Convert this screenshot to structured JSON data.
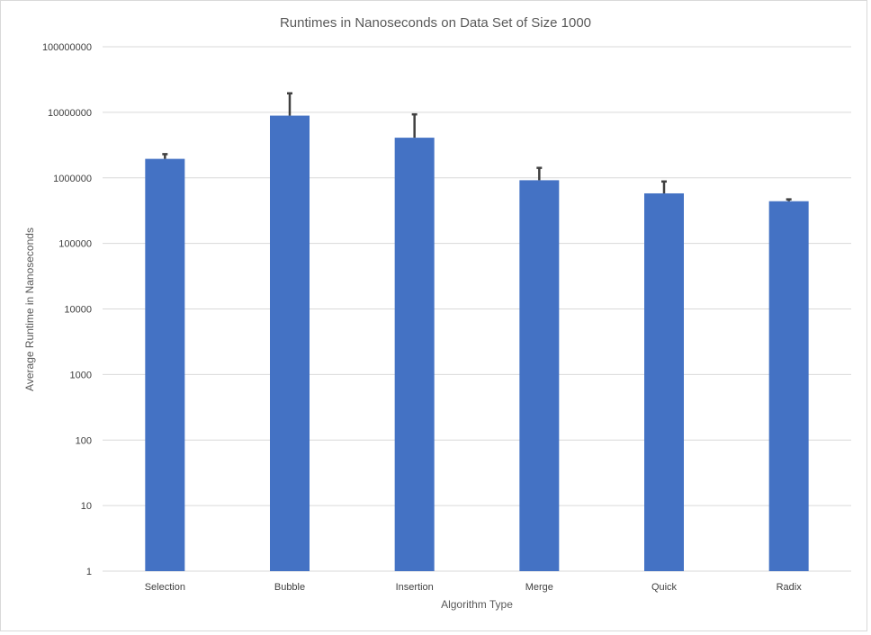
{
  "chart_data": {
    "type": "bar",
    "title": "Runtimes in Nanoseconds on Data Set of Size 1000",
    "xlabel": "Algorithm Type",
    "ylabel": "Average Runtime in Nanoseconds",
    "yscale": "log",
    "ylim": [
      1,
      100000000
    ],
    "yticks": [
      "1",
      "10",
      "100",
      "1000",
      "10000",
      "100000",
      "1000000",
      "10000000",
      "100000000"
    ],
    "grid": true,
    "categories": [
      "Selection",
      "Bubble",
      "Insertion",
      "Merge",
      "Quick",
      "Radix"
    ],
    "values": [
      1950000,
      8900000,
      4100000,
      920000,
      580000,
      440000
    ],
    "error_upper": [
      2300000,
      19500000,
      9300000,
      1420000,
      880000,
      470000
    ],
    "colors": {
      "bar": "#4472c4",
      "error_bar": "#404040",
      "grid": "#d9d9d9"
    }
  }
}
